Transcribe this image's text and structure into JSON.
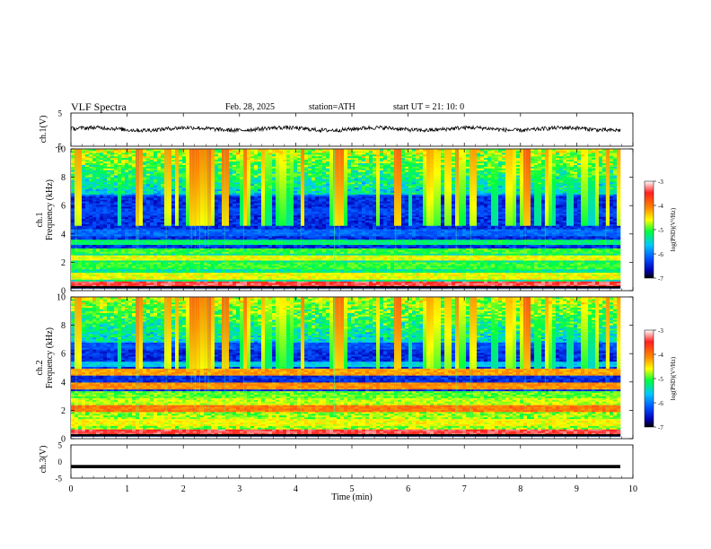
{
  "header": {
    "title": "VLF  Spectra",
    "date": "Feb. 28, 2025",
    "station": "station=ATH",
    "start_time": "start  UT  =   21: 10: 0"
  },
  "chart_data": [
    {
      "type": "line",
      "panel": "ch1-waveform",
      "ylabel": "ch.1(V)",
      "ylim": [
        -5,
        5
      ],
      "yticks": [
        "5",
        "-5"
      ],
      "xlim": [
        0,
        10
      ],
      "description_values": {
        "baseline_v": 0.2,
        "noise_amplitude_v": 1.2
      }
    },
    {
      "type": "heatmap",
      "panel": "ch1-spectrogram",
      "ylabel_lines": [
        "ch.1",
        "Frequency  (kHz)"
      ],
      "ylim": [
        0,
        10
      ],
      "yticks": [
        "0",
        "2",
        "4",
        "6",
        "8",
        "10"
      ],
      "xlim": [
        0,
        9.8
      ],
      "colorbar": {
        "label": "log(PSD)(V²/Hz)",
        "range": [
          -7,
          -3
        ],
        "ticks": [
          "-3",
          "-4",
          "-5",
          "-6",
          "-7"
        ]
      },
      "bands_khz": [
        {
          "freq": 0.3,
          "level": -3.4
        },
        {
          "freq": 0.9,
          "level": -4.6
        },
        {
          "freq": 1.6,
          "level": -5.0
        },
        {
          "freq": 2.2,
          "level": -4.6
        },
        {
          "freq": 2.7,
          "level": -5.0
        },
        {
          "freq": 3.3,
          "level": -5.2
        },
        {
          "freq": 4.0,
          "level": -6.1
        },
        {
          "freq": 5.5,
          "level": -6.3
        },
        {
          "freq": 6.9,
          "level": -6.1
        }
      ]
    },
    {
      "type": "heatmap",
      "panel": "ch2-spectrogram",
      "ylabel_lines": [
        "ch.2",
        "Frequency  (kHz)"
      ],
      "ylim": [
        0,
        10
      ],
      "yticks": [
        "0",
        "2",
        "4",
        "6",
        "8",
        "10"
      ],
      "xlim": [
        0,
        9.8
      ],
      "colorbar": {
        "label": "log(PSD)(V²/Hz)",
        "range": [
          -7,
          -3
        ],
        "ticks": [
          "-3",
          "-4",
          "-5",
          "-6",
          "-7"
        ]
      },
      "bands_khz": [
        {
          "freq": 0.3,
          "level": -3.4
        },
        {
          "freq": 1.0,
          "level": -4.6
        },
        {
          "freq": 2.0,
          "level": -4.0
        },
        {
          "freq": 2.5,
          "level": -4.8
        },
        {
          "freq": 3.0,
          "level": -4.9
        },
        {
          "freq": 3.6,
          "level": -4.1
        },
        {
          "freq": 4.6,
          "level": -4.2
        },
        {
          "freq": 5.2,
          "level": -5.6
        },
        {
          "freq": 6.5,
          "level": -6.2
        }
      ]
    },
    {
      "type": "line",
      "panel": "ch3-waveform",
      "ylabel": "ch.3(V)",
      "ylim": [
        -5,
        5
      ],
      "yticks": [
        "5",
        "0",
        "-5"
      ],
      "xlim": [
        0,
        10
      ],
      "description_values": {
        "baseline_v": -1.5
      }
    }
  ],
  "x_axis": {
    "label": "Time  (min)",
    "ticks": [
      "0",
      "1",
      "2",
      "3",
      "4",
      "5",
      "6",
      "7",
      "8",
      "9",
      "10"
    ]
  }
}
